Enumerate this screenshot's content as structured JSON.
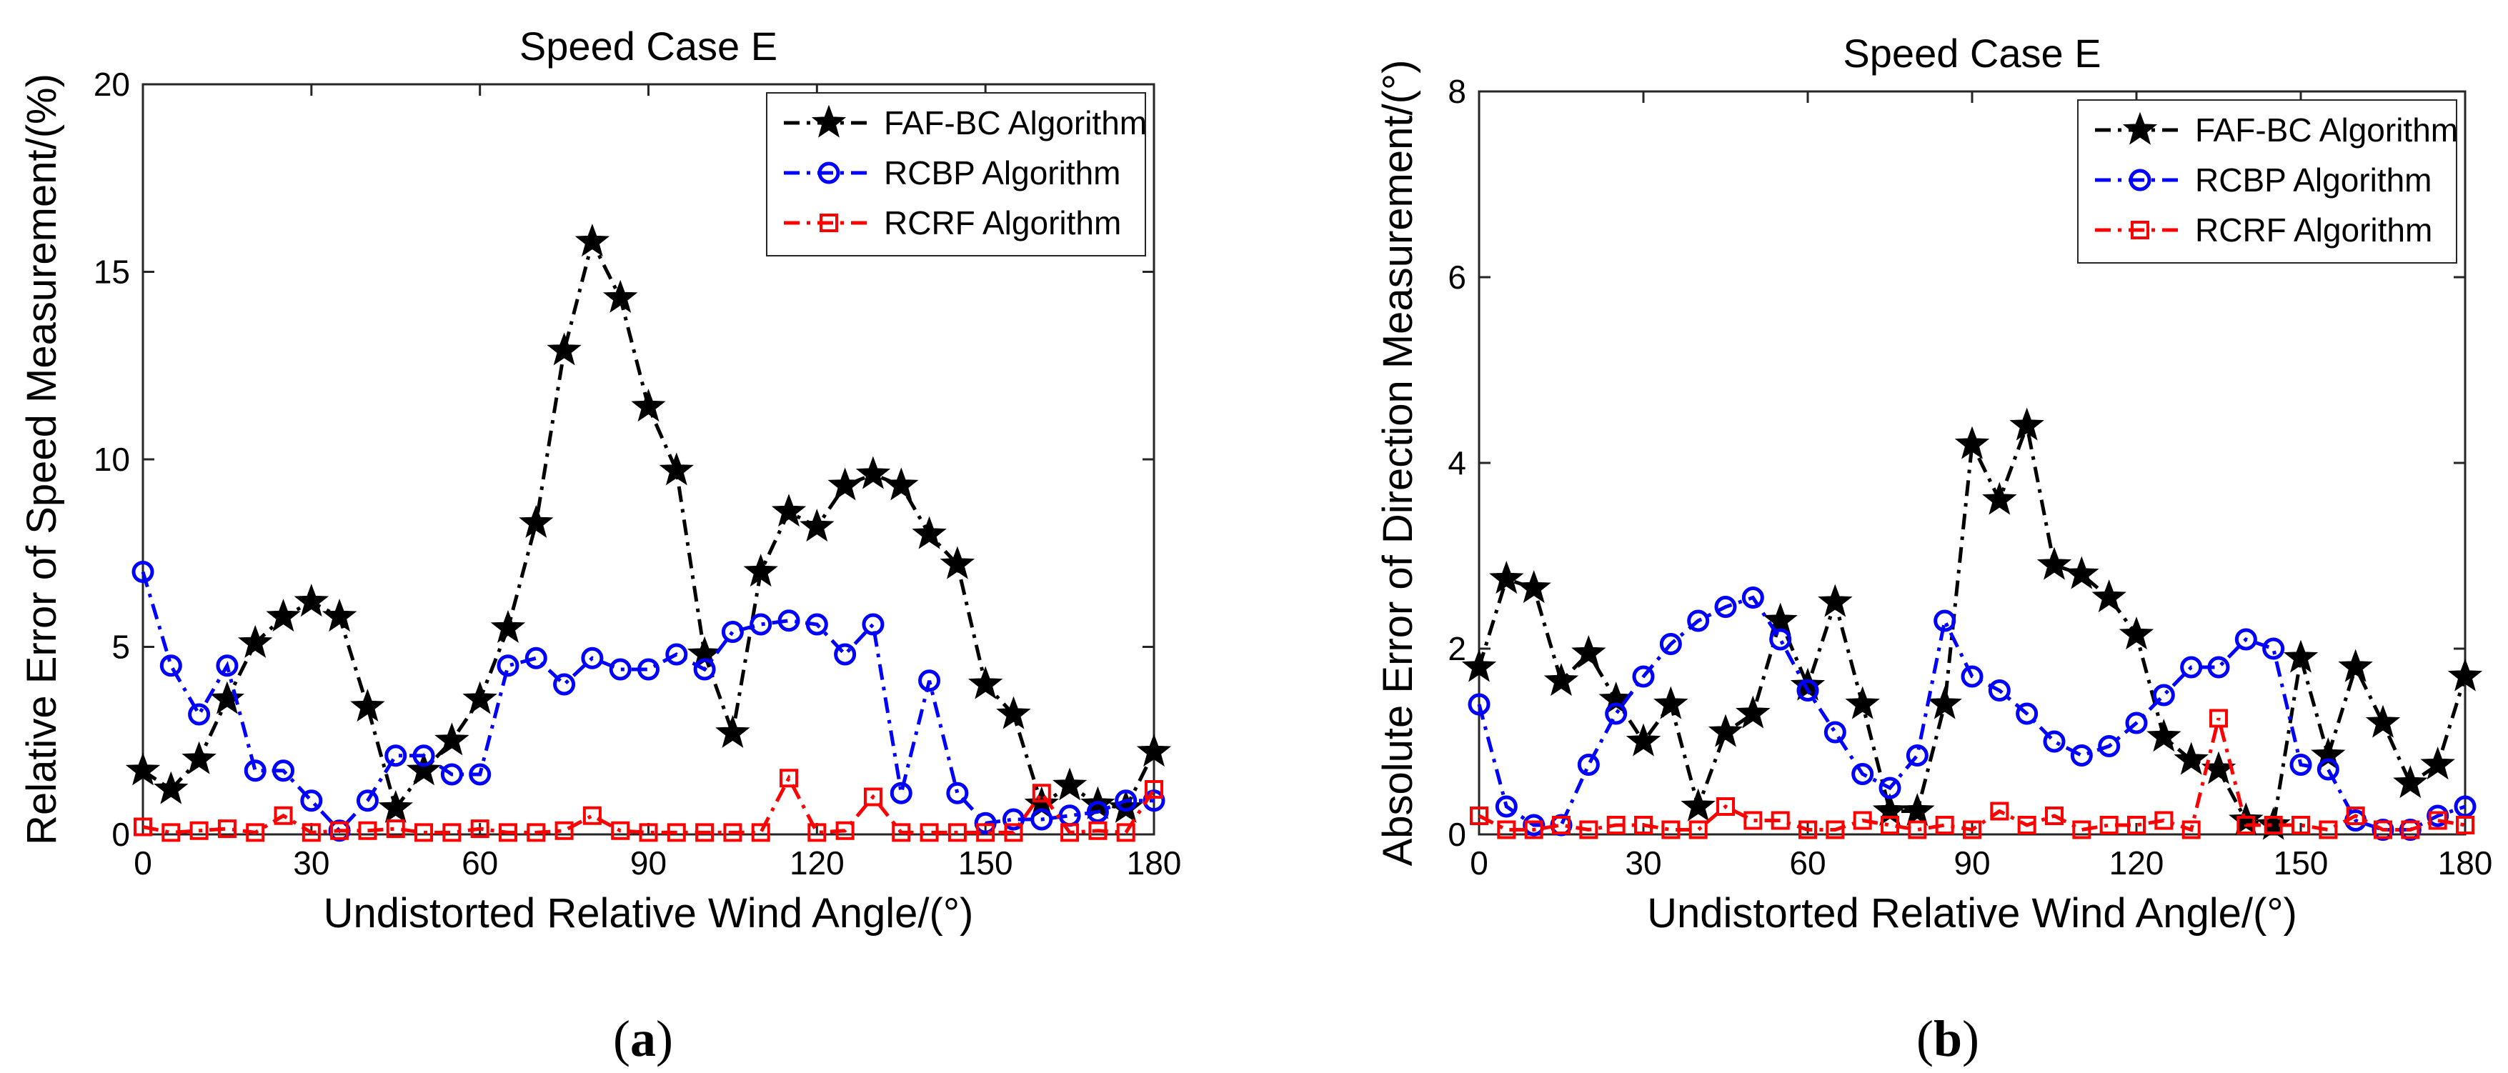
{
  "chart_data": [
    {
      "type": "line",
      "panel": "a",
      "title": "Speed Case E",
      "xlabel": "Undistorted Relative Wind Angle/(°)",
      "ylabel": "Relative Error of Speed Measurement/(%)",
      "xlim": [
        0,
        180
      ],
      "ylim": [
        0,
        20
      ],
      "xticks": [
        0,
        30,
        60,
        90,
        120,
        150,
        180
      ],
      "yticks": [
        0,
        5,
        10,
        15,
        20
      ],
      "grid": false,
      "legend": "top-right",
      "x": [
        0,
        5,
        10,
        15,
        20,
        25,
        30,
        35,
        40,
        45,
        50,
        55,
        60,
        65,
        70,
        75,
        80,
        85,
        90,
        95,
        100,
        105,
        110,
        115,
        120,
        125,
        130,
        135,
        140,
        145,
        150,
        155,
        160,
        165,
        170,
        175,
        180
      ],
      "series": [
        {
          "name": "FAF-BC Algorithm",
          "color": "#000000",
          "marker": "star",
          "values": [
            1.7,
            1.2,
            2.0,
            3.6,
            5.1,
            5.8,
            6.2,
            5.8,
            3.4,
            0.7,
            1.7,
            2.5,
            3.6,
            5.5,
            8.3,
            12.9,
            15.8,
            14.3,
            11.4,
            9.7,
            4.8,
            2.7,
            7.0,
            8.6,
            8.2,
            9.3,
            9.6,
            9.3,
            8.0,
            7.2,
            4.0,
            3.2,
            0.8,
            1.3,
            0.8,
            0.7,
            2.2
          ]
        },
        {
          "name": "RCBP Algorithm",
          "color": "#0000ff",
          "marker": "circle",
          "values": [
            7.0,
            4.5,
            3.2,
            4.5,
            1.7,
            1.7,
            0.9,
            0.1,
            0.9,
            2.1,
            2.1,
            1.6,
            1.6,
            4.5,
            4.7,
            4.0,
            4.7,
            4.4,
            4.4,
            4.8,
            4.4,
            5.4,
            5.6,
            5.7,
            5.6,
            4.8,
            5.6,
            1.1,
            4.1,
            1.1,
            0.3,
            0.4,
            0.4,
            0.5,
            0.6,
            0.9,
            0.9
          ]
        },
        {
          "name": "RCRF Algorithm",
          "color": "#ff0000",
          "marker": "square",
          "values": [
            0.2,
            0.05,
            0.1,
            0.15,
            0.05,
            0.5,
            0.05,
            0.1,
            0.1,
            0.15,
            0.05,
            0.05,
            0.15,
            0.05,
            0.05,
            0.1,
            0.5,
            0.1,
            0.05,
            0.05,
            0.05,
            0.05,
            0.05,
            1.5,
            0.05,
            0.1,
            1.0,
            0.05,
            0.05,
            0.05,
            0.05,
            0.05,
            1.1,
            0.05,
            0.1,
            0.05,
            1.2
          ]
        }
      ]
    },
    {
      "type": "line",
      "panel": "b",
      "title": "Speed Case E",
      "xlabel": "Undistorted Relative Wind Angle/(°)",
      "ylabel": "Absolute Error of Direction Measurement/(°)",
      "xlim": [
        0,
        180
      ],
      "ylim": [
        0,
        8
      ],
      "xticks": [
        0,
        30,
        60,
        90,
        120,
        150,
        180
      ],
      "yticks": [
        0,
        2,
        4,
        6,
        8
      ],
      "grid": false,
      "legend": "top-right",
      "x": [
        0,
        5,
        10,
        15,
        20,
        25,
        30,
        35,
        40,
        45,
        50,
        55,
        60,
        65,
        70,
        75,
        80,
        85,
        90,
        95,
        100,
        105,
        110,
        115,
        120,
        125,
        130,
        135,
        140,
        145,
        150,
        155,
        160,
        165,
        170,
        175,
        180
      ],
      "series": [
        {
          "name": "FAF-BC Algorithm",
          "color": "#000000",
          "marker": "star",
          "values": [
            1.8,
            2.75,
            2.65,
            1.65,
            1.95,
            1.45,
            1.0,
            1.4,
            0.3,
            1.1,
            1.3,
            2.3,
            1.6,
            2.5,
            1.4,
            0.25,
            0.25,
            1.4,
            4.2,
            3.6,
            4.4,
            2.9,
            2.8,
            2.55,
            2.15,
            1.05,
            0.8,
            0.7,
            0.15,
            0.1,
            1.9,
            0.85,
            1.8,
            1.2,
            0.55,
            0.75,
            1.7
          ]
        },
        {
          "name": "RCBP Algorithm",
          "color": "#0000ff",
          "marker": "circle",
          "values": [
            1.4,
            0.3,
            0.1,
            0.1,
            0.75,
            1.3,
            1.7,
            2.05,
            2.3,
            2.45,
            2.55,
            2.1,
            1.55,
            1.1,
            0.65,
            0.5,
            0.85,
            2.3,
            1.7,
            1.55,
            1.3,
            1.0,
            0.85,
            0.95,
            1.2,
            1.5,
            1.8,
            1.8,
            2.1,
            2.0,
            0.75,
            0.7,
            0.15,
            0.05,
            0.05,
            0.2,
            0.3
          ]
        },
        {
          "name": "RCRF Algorithm",
          "color": "#ff0000",
          "marker": "square",
          "values": [
            0.2,
            0.05,
            0.05,
            0.1,
            0.05,
            0.1,
            0.1,
            0.05,
            0.05,
            0.3,
            0.15,
            0.15,
            0.05,
            0.05,
            0.15,
            0.1,
            0.05,
            0.1,
            0.05,
            0.25,
            0.1,
            0.2,
            0.05,
            0.1,
            0.1,
            0.15,
            0.05,
            1.25,
            0.1,
            0.1,
            0.1,
            0.05,
            0.2,
            0.05,
            0.05,
            0.15,
            0.1
          ]
        }
      ]
    }
  ],
  "captions": [
    "(a)",
    "(b)"
  ],
  "caption_letters": [
    "a",
    "b"
  ]
}
